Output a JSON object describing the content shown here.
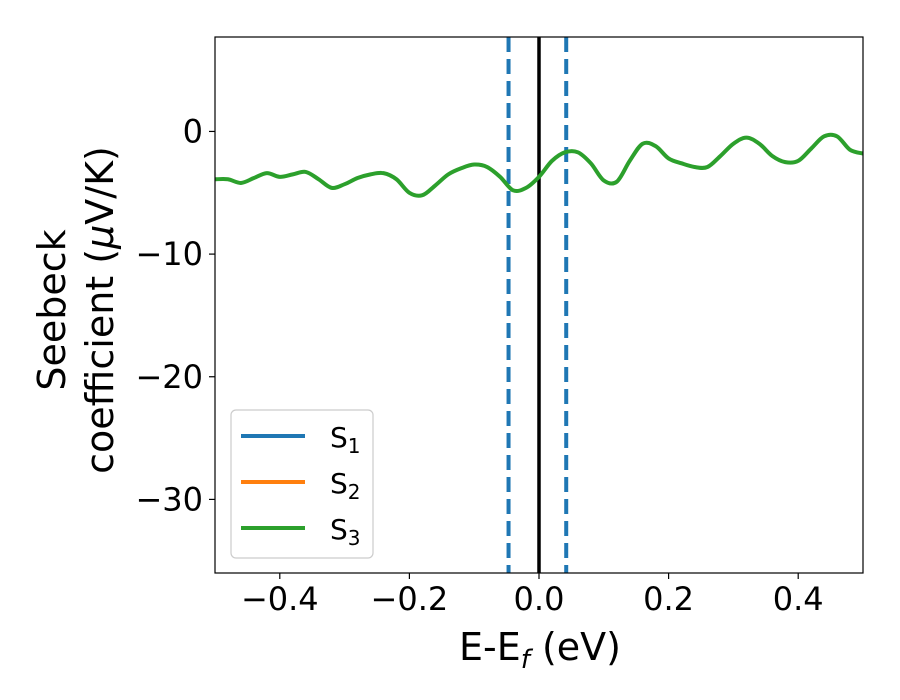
{
  "chart_data": {
    "type": "line",
    "xlabel": {
      "main": "E-E",
      "sub": "f",
      "unit": " (eV)"
    },
    "ylabel": {
      "line1": "Seebeck",
      "line2_prefix": "coefficient  (",
      "mu": "μ",
      "line2_suffix": "V/K)"
    },
    "xlim": [
      -0.5,
      0.5
    ],
    "ylim": [
      -36,
      7.7
    ],
    "xticks": [
      -0.4,
      -0.2,
      0.0,
      0.2,
      0.4
    ],
    "xtick_labels": [
      "−0.4",
      "−0.2",
      "0.0",
      "0.2",
      "0.4"
    ],
    "yticks": [
      0,
      -10,
      -20,
      -30
    ],
    "ytick_labels": [
      "0",
      "−10",
      "−20",
      "−30"
    ],
    "grid": false,
    "legend_position": "lower-left",
    "vertical_lines": [
      {
        "x": -0.047,
        "style": "dashed",
        "color": "#1f77b4"
      },
      {
        "x": 0.0,
        "style": "solid",
        "color": "#000000"
      },
      {
        "x": 0.042,
        "style": "dashed",
        "color": "#1f77b4"
      }
    ],
    "series": [
      {
        "name": "S",
        "sub": "1",
        "color": "#1f77b4",
        "visible_line": false
      },
      {
        "name": "S",
        "sub": "2",
        "color": "#ff7f0e",
        "visible_line": false
      },
      {
        "name": "S",
        "sub": "3",
        "color": "#2ca02c",
        "visible_line": true,
        "x": [
          -0.5,
          -0.48,
          -0.46,
          -0.44,
          -0.42,
          -0.4,
          -0.38,
          -0.36,
          -0.34,
          -0.32,
          -0.3,
          -0.28,
          -0.26,
          -0.24,
          -0.22,
          -0.2,
          -0.18,
          -0.16,
          -0.14,
          -0.12,
          -0.1,
          -0.08,
          -0.06,
          -0.04,
          -0.02,
          0.0,
          0.02,
          0.04,
          0.06,
          0.08,
          0.1,
          0.12,
          0.14,
          0.16,
          0.18,
          0.2,
          0.22,
          0.24,
          0.26,
          0.28,
          0.3,
          0.32,
          0.34,
          0.36,
          0.38,
          0.4,
          0.42,
          0.44,
          0.46,
          0.48,
          0.5
        ],
        "y": [
          -3.9,
          -3.9,
          -4.2,
          -3.8,
          -3.4,
          -3.7,
          -3.5,
          -3.3,
          -3.9,
          -4.6,
          -4.3,
          -3.8,
          -3.5,
          -3.4,
          -3.9,
          -5.0,
          -5.2,
          -4.4,
          -3.5,
          -3.0,
          -2.7,
          -2.9,
          -3.7,
          -4.8,
          -4.6,
          -3.7,
          -2.4,
          -1.7,
          -1.7,
          -2.6,
          -4.0,
          -4.1,
          -2.4,
          -1.0,
          -1.2,
          -2.2,
          -2.6,
          -2.9,
          -2.9,
          -2.0,
          -1.0,
          -0.5,
          -1.0,
          -2.0,
          -2.5,
          -2.4,
          -1.4,
          -0.4,
          -0.4,
          -1.5,
          -1.8
        ]
      }
    ]
  }
}
